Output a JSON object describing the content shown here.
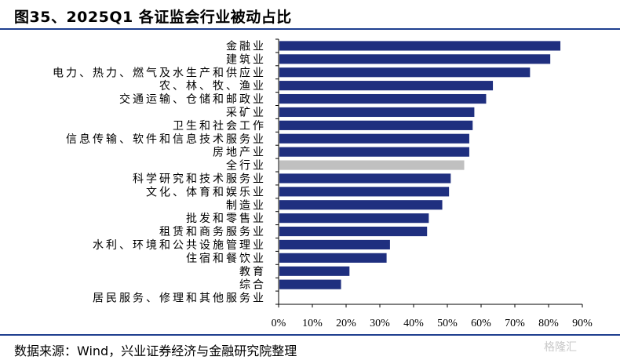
{
  "title": "图35、2025Q1 各证监会行业被动占比",
  "source": "数据来源：Wind，兴业证券经济与金融研究院整理",
  "watermark": "格隆汇",
  "colors": {
    "bar": "#1f2f7f",
    "highlight": "#c0c0c0",
    "rule": "#1f3f8f"
  },
  "chart_data": {
    "type": "bar",
    "orientation": "horizontal",
    "title": "",
    "xlabel": "",
    "ylabel": "",
    "xlim": [
      0,
      90
    ],
    "x_ticks": [
      "0%",
      "10%",
      "20%",
      "30%",
      "40%",
      "50%",
      "60%",
      "70%",
      "80%",
      "90%"
    ],
    "x_tick_values": [
      0,
      10,
      20,
      30,
      40,
      50,
      60,
      70,
      80,
      90
    ],
    "grid": false,
    "highlight_category": "全行业",
    "categories": [
      "金融业",
      "建筑业",
      "电力、热力、燃气及水生产和供应业",
      "农、林、牧、渔业",
      "交通运输、仓储和邮政业",
      "采矿业",
      "卫生和社会工作",
      "信息传输、软件和信息技术服务业",
      "房地产业",
      "全行业",
      "科学研究和技术服务业",
      "文化、体育和娱乐业",
      "制造业",
      "批发和零售业",
      "租赁和商务服务业",
      "水利、环境和公共设施管理业",
      "住宿和餐饮业",
      "教育",
      "综合",
      "居民服务、修理和其他服务业"
    ],
    "values": [
      83.5,
      80.5,
      74.5,
      63.5,
      61.5,
      58,
      57.5,
      56.5,
      56.5,
      55,
      51,
      50.5,
      48.5,
      44.5,
      44,
      33,
      32,
      21,
      18.5,
      0
    ]
  }
}
